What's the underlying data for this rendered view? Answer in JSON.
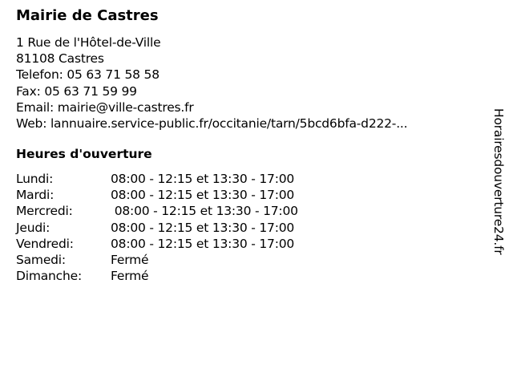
{
  "title": "Mairie de Castres",
  "info": {
    "address": "1 Rue de l'Hôtel-de-Ville",
    "city": "81108 Castres",
    "phone": "Telefon: 05 63 71 58 58",
    "fax": "Fax: 05 63 71 59 99",
    "email": "Email: mairie@ville-castres.fr",
    "web": "Web: lannuaire.service-public.fr/occitanie/tarn/5bcd6bfa-d222-..."
  },
  "hours_heading": "Heures d'ouverture",
  "hours": [
    {
      "day": "Lundi:",
      "time": "08:00 - 12:15 et 13:30 - 17:00"
    },
    {
      "day": "Mardi:",
      "time": "08:00 - 12:15 et 13:30 - 17:00"
    },
    {
      "day": "Mercredi:",
      "time": " 08:00 - 12:15 et 13:30 - 17:00"
    },
    {
      "day": "Jeudi:",
      "time": "08:00 - 12:15 et 13:30 - 17:00"
    },
    {
      "day": "Vendredi:",
      "time": "08:00 - 12:15 et 13:30 - 17:00"
    },
    {
      "day": "Samedi:",
      "time": "Fermé"
    },
    {
      "day": "Dimanche:",
      "time": "Fermé"
    }
  ],
  "watermark": "Horairesdouverture24.fr"
}
